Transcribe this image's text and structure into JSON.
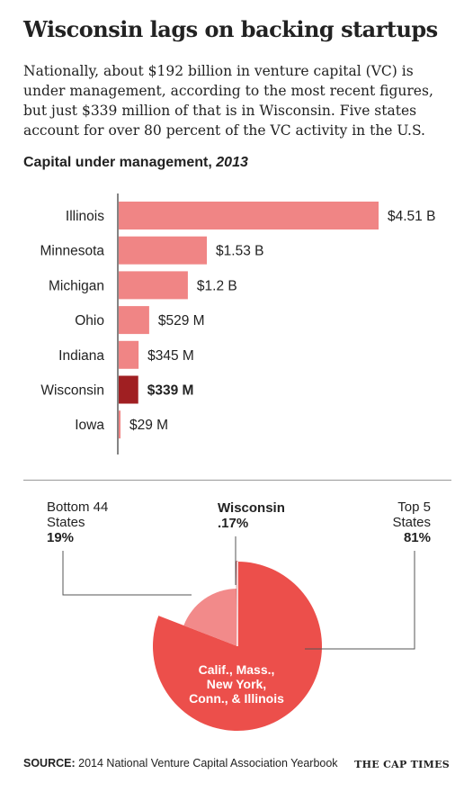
{
  "headline": "Wisconsin lags on backing startups",
  "intro": "Nationally, about $192 billion in venture capital (VC) is under management, according to the most recent figures, but just $339 million of that is in Wisconsin. Five states account for over 80 percent of the VC activity in the U.S.",
  "chart_title": {
    "main": "Capital under management,",
    "year": "2013"
  },
  "colors": {
    "bar": "#f08585",
    "highlight": "#a01f22",
    "pie_main": "#ec4f4b",
    "pie_bottom": "#f28a8a",
    "axis": "#333333",
    "leader": "#555555"
  },
  "chart_data": [
    {
      "type": "bar",
      "orientation": "horizontal",
      "title": "Capital under management, 2013",
      "unit": "billion USD",
      "categories": [
        "Illinois",
        "Minnesota",
        "Michigan",
        "Ohio",
        "Indiana",
        "Wisconsin",
        "Iowa"
      ],
      "values": [
        4.51,
        1.53,
        1.2,
        0.529,
        0.345,
        0.339,
        0.029
      ],
      "value_labels": [
        "$4.51 B",
        "$1.53 B",
        "$1.2 B",
        "$529 M",
        "$345 M",
        "$339 M",
        "$29 M"
      ],
      "highlight": "Wisconsin"
    },
    {
      "type": "pie",
      "categories": [
        "Top 5 States",
        "Bottom 44 States",
        "Wisconsin"
      ],
      "values": [
        81,
        19,
        0.17
      ],
      "value_labels": [
        "81%",
        "19%",
        ".17%"
      ]
    }
  ],
  "pie_labels": {
    "bottom_name": "Bottom 44\nStates",
    "bottom_pct": "19%",
    "wi_name": "Wisconsin",
    "wi_pct": ".17%",
    "top_name": "Top 5\nStates",
    "top_pct": "81%",
    "top_states": "Calif., Mass., New York, Conn., & Illinois"
  },
  "source": {
    "tag": "SOURCE:",
    "text": "2014 National Venture Capital Association Yearbook"
  },
  "brand": "THE CAP TIMES"
}
